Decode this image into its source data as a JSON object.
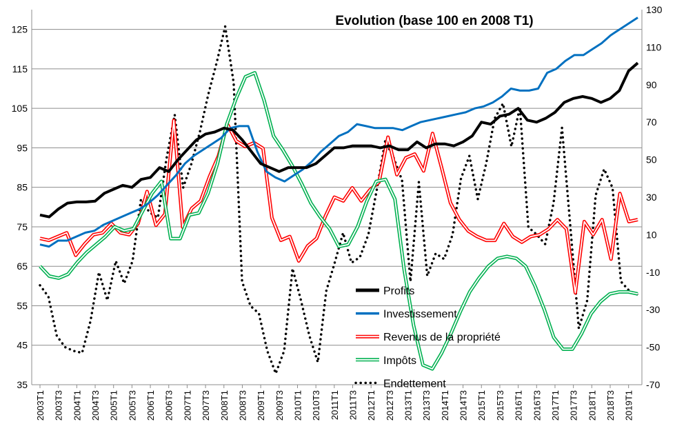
{
  "chart_data": {
    "type": "line",
    "title": "Evolution (base 100 en 2008 T1)",
    "legend_position": "lower-center",
    "grid": {
      "horizontal": true,
      "vertical": false
    },
    "y_left": {
      "min": 35,
      "max": 130,
      "ticks": [
        35,
        45,
        55,
        65,
        75,
        85,
        95,
        105,
        115,
        125
      ]
    },
    "y_right": {
      "min": -70,
      "max": 130,
      "ticks": [
        -70,
        -50,
        -30,
        -10,
        10,
        30,
        50,
        70,
        90,
        110,
        130
      ]
    },
    "x_tick_labels": [
      "2003T1",
      "2003T3",
      "2004T1",
      "2004T3",
      "2005T1",
      "2005T3",
      "2006T1",
      "2006T3",
      "2007T1",
      "2007T3",
      "2008T1",
      "2008T3",
      "2009T1",
      "2009T3",
      "2010T1",
      "2010T3",
      "2011T1",
      "2011T3",
      "2012T1",
      "2012T3",
      "2013T1",
      "2013T3",
      "2014T1",
      "2014T3",
      "2015T1",
      "2015T3",
      "2016T1",
      "2016T3",
      "2017T1",
      "2017T3",
      "2018T1",
      "2018T3",
      "2019T1"
    ],
    "series": [
      {
        "name": "Profits",
        "axis": "left",
        "color": "#000000",
        "style": "solid-thick",
        "values": [
          78,
          77.5,
          79.5,
          81,
          81.3,
          81.3,
          81.5,
          83.5,
          84.5,
          85.5,
          85,
          87,
          87.5,
          90,
          89,
          92,
          94.5,
          97,
          98.5,
          99,
          100,
          99.5,
          97,
          94,
          91,
          90,
          89,
          90,
          90,
          90,
          91,
          93,
          95,
          95,
          95.5,
          95.5,
          95.5,
          95,
          95.5,
          94.5,
          94.5,
          96.5,
          95,
          96,
          96,
          95.5,
          96.5,
          98,
          101.5,
          101,
          103,
          103.5,
          105,
          102,
          101.5,
          102.5,
          104,
          106.5,
          107.5,
          108,
          107.5,
          106.5,
          107.5,
          109.5,
          114.5,
          116.5
        ]
      },
      {
        "name": "Investissement",
        "axis": "left",
        "color": "#0070C0",
        "style": "solid",
        "values": [
          70.5,
          70,
          71.5,
          71.5,
          72.5,
          73.5,
          74,
          75.5,
          76.5,
          77.5,
          78.5,
          79.5,
          81,
          83,
          85.5,
          88,
          91,
          93,
          94.5,
          96,
          97.5,
          100,
          100.5,
          100.5,
          94,
          89,
          87.5,
          86.5,
          88,
          89.5,
          91.5,
          94,
          96,
          98,
          99,
          101,
          100.5,
          100,
          100,
          100,
          99.5,
          100.5,
          101.5,
          102,
          102.5,
          103,
          103.5,
          104,
          105,
          105.5,
          106.5,
          108,
          110,
          109.5,
          109.5,
          110,
          114,
          115,
          117,
          118.5,
          118.5,
          120,
          121.5,
          123.5,
          125,
          126.5,
          128
        ]
      },
      {
        "name": "Revenus de la propriété",
        "axis": "right",
        "color": "#FF0000",
        "style": "double-line-white-core",
        "values": [
          8,
          7,
          9,
          11,
          -1,
          5,
          10,
          11,
          16,
          11,
          10,
          16,
          33,
          15,
          21,
          71,
          14,
          24,
          28,
          41,
          52,
          69,
          60,
          57,
          59,
          56,
          19,
          7,
          9,
          -4,
          4,
          8,
          20,
          30,
          28,
          35,
          28,
          34,
          38,
          62,
          42,
          51,
          53,
          44,
          64,
          46,
          27,
          18,
          12,
          9,
          7,
          7,
          16,
          9,
          6,
          9,
          10,
          13,
          18,
          13,
          -21,
          17,
          10,
          18,
          -3,
          32,
          17,
          18
        ]
      },
      {
        "name": "Impôts",
        "axis": "left",
        "color": "#00B050",
        "style": "double-line-white-core",
        "values": [
          65,
          62.5,
          62,
          63,
          66,
          68.5,
          70.5,
          72.5,
          75,
          74,
          74.5,
          79,
          83.5,
          86.5,
          72,
          72,
          78,
          78.5,
          83.5,
          91,
          101,
          107.5,
          113,
          114,
          107,
          98,
          94.5,
          90.5,
          86,
          81,
          77.5,
          74.5,
          70,
          70.5,
          75,
          81.5,
          86.5,
          87,
          82,
          64,
          50,
          40,
          39,
          43,
          48,
          53.5,
          58.5,
          62,
          65,
          67,
          67.5,
          67,
          65,
          60,
          54,
          47,
          44,
          44,
          48,
          53,
          56,
          58,
          58.5,
          58.5,
          58
        ]
      },
      {
        "name": "Endettement",
        "axis": "right",
        "color": "#000000",
        "style": "dotted-thick",
        "values": [
          -17,
          -23,
          -44,
          -50,
          -52,
          -53,
          -36,
          -10,
          -25,
          -4,
          -16,
          -4,
          29,
          22,
          19,
          50,
          74,
          35,
          48,
          65,
          85,
          102,
          121,
          91,
          -15,
          -28,
          -32,
          -52,
          -64,
          -52,
          -8,
          -25,
          -44,
          -58,
          -20,
          -5,
          11,
          -5,
          -2,
          10,
          34,
          60,
          51,
          39,
          -15,
          38,
          -12,
          0,
          -3,
          10,
          40,
          52,
          29,
          48,
          72,
          80,
          57,
          78,
          14,
          10,
          5,
          27,
          67,
          14,
          -40,
          -25,
          31,
          45,
          35,
          -15,
          -20,
          -22
        ]
      }
    ],
    "legend_order": [
      "Profits",
      "Investissement",
      "Revenus de la propriété",
      "Impôts",
      "Endettement"
    ]
  }
}
